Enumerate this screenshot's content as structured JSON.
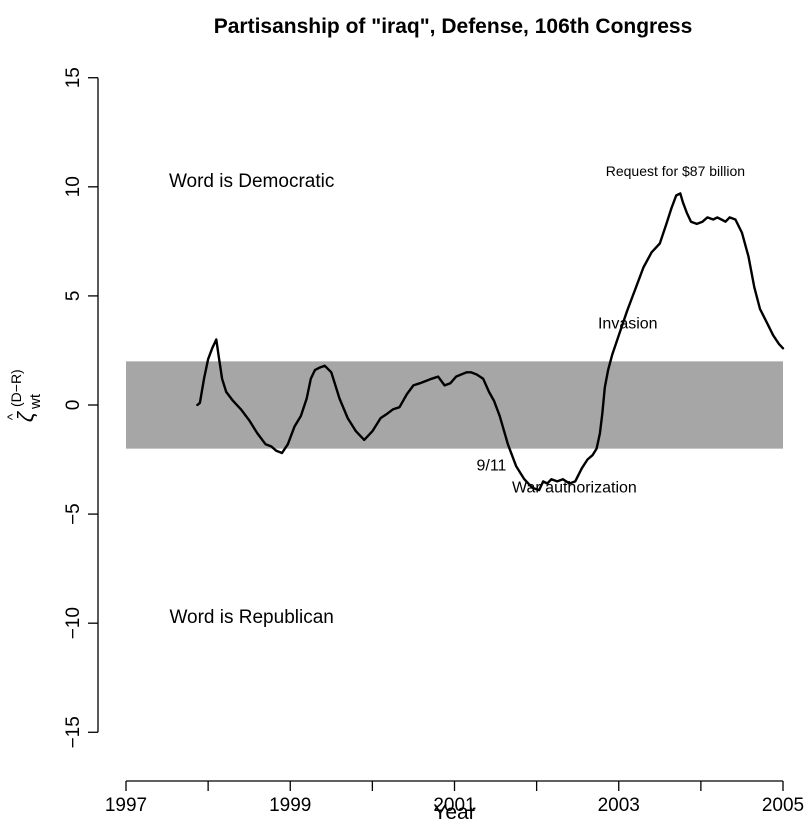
{
  "chart_data": {
    "type": "line",
    "title": "Partisanship of \"iraq\", Defense, 106th Congress",
    "xlabel": "Year",
    "ylabel": {
      "main": "ζ",
      "hat": "^",
      "superscript": "(D−R)",
      "subscript": "wt"
    },
    "xlim": [
      1997,
      2005
    ],
    "ylim": [
      -16.5,
      16.5
    ],
    "x_ticks": [
      1997,
      1999,
      2001,
      2003,
      2005
    ],
    "x_minor_ticks": [
      1998,
      2000,
      2002,
      2004
    ],
    "y_ticks": [
      -15,
      -10,
      -5,
      0,
      5,
      10,
      15
    ],
    "band": {
      "ymin": -2,
      "ymax": 2,
      "color": "#a6a6a6"
    },
    "line_color": "#000000",
    "grid": false,
    "legend": "none",
    "series": [
      {
        "x": [
          1997.87,
          1997.9,
          1997.95,
          1998.0,
          1998.05,
          1998.1,
          1998.13,
          1998.17,
          1998.22,
          1998.3,
          1998.4,
          1998.5,
          1998.6,
          1998.7,
          1998.77,
          1998.83,
          1998.9,
          1998.97,
          1999.05,
          1999.13,
          1999.2,
          1999.25,
          1999.3,
          1999.35,
          1999.42,
          1999.5,
          1999.6,
          1999.7,
          1999.8,
          1999.9,
          2000.0,
          2000.1,
          2000.18,
          2000.25,
          2000.33,
          2000.42,
          2000.5,
          2000.58,
          2000.65,
          2000.72,
          2000.8,
          2000.88,
          2000.95,
          2001.02,
          2001.08,
          2001.15,
          2001.2,
          2001.27,
          2001.35,
          2001.42,
          2001.48,
          2001.55,
          2001.65,
          2001.75,
          2001.85,
          2001.95,
          2002.03,
          2002.08,
          2002.13,
          2002.18,
          2002.25,
          2002.32,
          2002.4,
          2002.47,
          2002.55,
          2002.62,
          2002.68,
          2002.73,
          2002.77,
          2002.8,
          2002.83,
          2002.87,
          2002.92,
          2003.0,
          2003.1,
          2003.2,
          2003.3,
          2003.4,
          2003.5,
          2003.58,
          2003.64,
          2003.7,
          2003.75,
          2003.78,
          2003.83,
          2003.88,
          2003.95,
          2004.02,
          2004.08,
          2004.15,
          2004.2,
          2004.25,
          2004.3,
          2004.35,
          2004.42,
          2004.5,
          2004.58,
          2004.65,
          2004.72,
          2004.8,
          2004.88,
          2004.95,
          2005.0
        ],
        "y": [
          0.0,
          0.1,
          1.2,
          2.1,
          2.6,
          3.0,
          2.2,
          1.2,
          0.6,
          0.2,
          -0.2,
          -0.7,
          -1.3,
          -1.8,
          -1.9,
          -2.1,
          -2.2,
          -1.8,
          -1.0,
          -0.5,
          0.3,
          1.2,
          1.6,
          1.7,
          1.8,
          1.5,
          0.3,
          -0.6,
          -1.2,
          -1.6,
          -1.2,
          -0.6,
          -0.4,
          -0.2,
          -0.1,
          0.5,
          0.9,
          1.0,
          1.1,
          1.2,
          1.3,
          0.9,
          1.0,
          1.3,
          1.4,
          1.5,
          1.5,
          1.4,
          1.2,
          0.6,
          0.2,
          -0.5,
          -1.8,
          -2.8,
          -3.4,
          -3.8,
          -3.9,
          -3.5,
          -3.6,
          -3.4,
          -3.5,
          -3.4,
          -3.6,
          -3.5,
          -2.9,
          -2.5,
          -2.3,
          -2.0,
          -1.3,
          -0.4,
          0.8,
          1.6,
          2.3,
          3.2,
          4.3,
          5.3,
          6.3,
          7.0,
          7.4,
          8.3,
          9.0,
          9.6,
          9.7,
          9.3,
          8.8,
          8.4,
          8.3,
          8.4,
          8.6,
          8.5,
          8.6,
          8.5,
          8.4,
          8.6,
          8.5,
          7.9,
          6.8,
          5.4,
          4.4,
          3.8,
          3.2,
          2.8,
          2.6
        ]
      }
    ],
    "annotations": [
      {
        "text": "Request for $87 billion",
        "x": 2003.69,
        "y": 10.5,
        "size": "small"
      },
      {
        "text": "Invasion",
        "x": 2003.11,
        "y": 3.5,
        "size": "normal"
      },
      {
        "text": "War authorization",
        "x": 2002.46,
        "y": -4.0,
        "size": "normal"
      },
      {
        "text": "9/11",
        "x": 2001.45,
        "y": -3.0,
        "size": "normal"
      }
    ],
    "region_labels": [
      {
        "text": "Word is Democratic",
        "x": 1998.53,
        "y": 10.0
      },
      {
        "text": "Word is Republican",
        "x": 1998.53,
        "y": -10.0
      }
    ]
  }
}
